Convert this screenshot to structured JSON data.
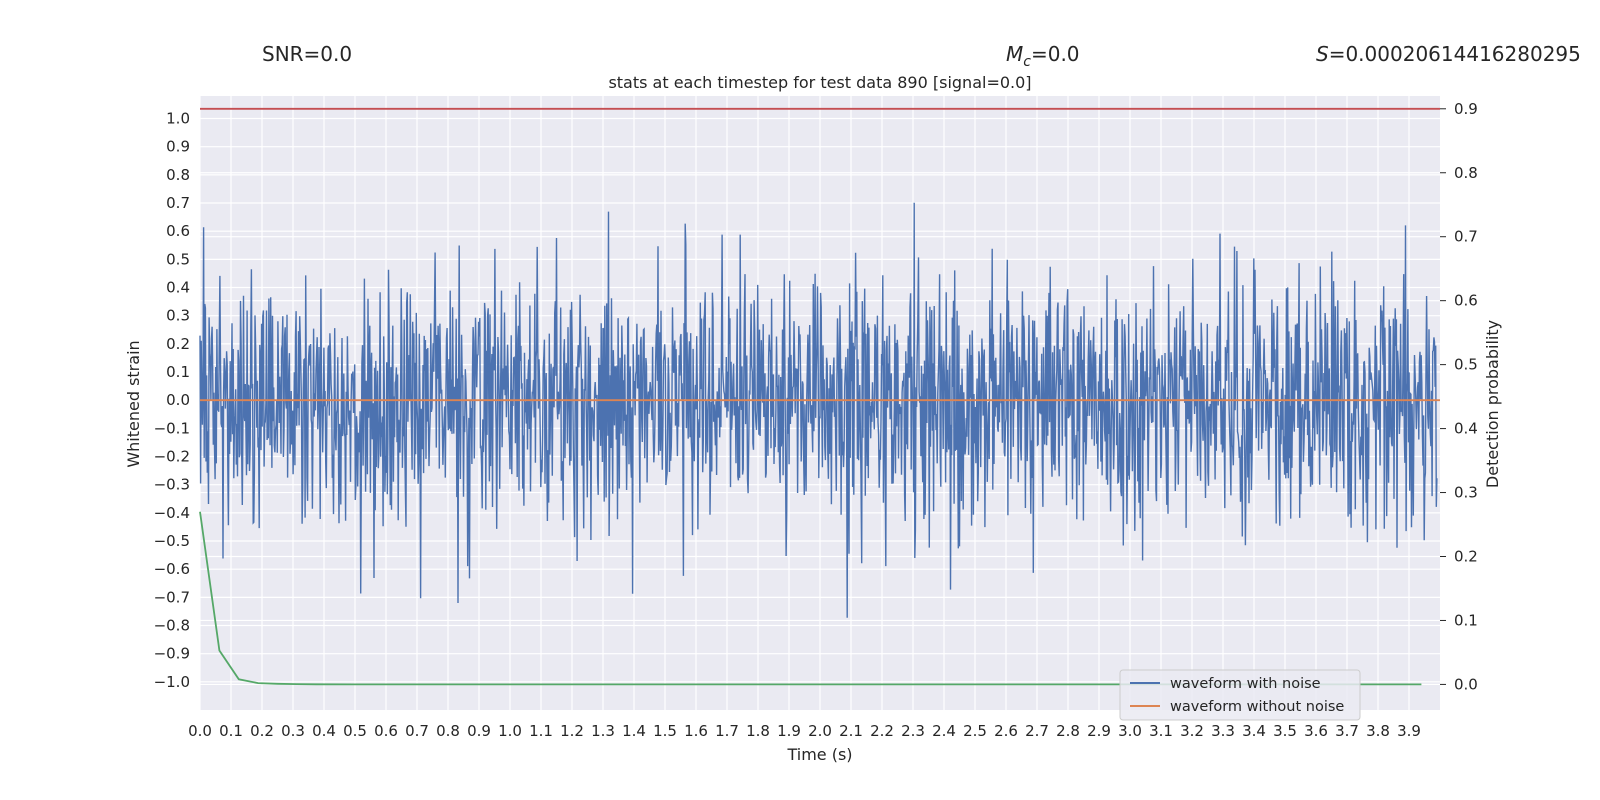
{
  "chart_data": {
    "type": "line",
    "title": "stats at each timestep for test data 890 [signal=0.0]",
    "stats": {
      "snr": "SNR=0.0",
      "mc_symbol": "M",
      "mc_sub": "c",
      "mc_value": "=0.0",
      "s_symbol": "S",
      "s_value": "=0.00020614416280295"
    },
    "xlabel": "Time (s)",
    "ylabel_left": "Whitened strain",
    "ylabel_right": "Detection probability",
    "xlim": [
      0.0,
      4.0
    ],
    "ylim_left": [
      -1.1,
      1.08
    ],
    "ylim_right": [
      -0.04,
      0.92
    ],
    "x_ticks": [
      "0.0",
      "0.1",
      "0.2",
      "0.3",
      "0.4",
      "0.5",
      "0.6",
      "0.7",
      "0.8",
      "0.9",
      "1.0",
      "1.1",
      "1.2",
      "1.3",
      "1.4",
      "1.5",
      "1.6",
      "1.7",
      "1.8",
      "1.9",
      "2.0",
      "2.1",
      "2.2",
      "2.3",
      "2.4",
      "2.5",
      "2.6",
      "2.7",
      "2.8",
      "2.9",
      "3.0",
      "3.1",
      "3.2",
      "3.3",
      "3.4",
      "3.5",
      "3.6",
      "3.7",
      "3.8",
      "3.9"
    ],
    "y_ticks_left": [
      "1.0",
      "0.9",
      "0.8",
      "0.7",
      "0.6",
      "0.5",
      "0.4",
      "0.3",
      "0.2",
      "0.1",
      "0.0",
      "−0.1",
      "−0.2",
      "−0.3",
      "−0.4",
      "−0.5",
      "−0.6",
      "−0.7",
      "−0.8",
      "−0.9",
      "−1.0"
    ],
    "y_ticks_right": [
      "0.9",
      "0.8",
      "0.7",
      "0.6",
      "0.5",
      "0.4",
      "0.3",
      "0.2",
      "0.1",
      "0.0"
    ],
    "threshold": 0.9,
    "series": [
      {
        "name": "waveform with noise",
        "color": "#4c72b0",
        "axis": "left",
        "kind": "noise",
        "n_samples": 2048,
        "approx_std": 0.22
      },
      {
        "name": "waveform without noise",
        "color": "#dd8452",
        "axis": "left",
        "x": [
          0.0,
          4.0
        ],
        "values": [
          0.0,
          0.0
        ]
      },
      {
        "name": "detection probability",
        "color": "#55a868",
        "axis": "right",
        "x": [
          0.0,
          0.0625,
          0.125,
          0.1875,
          0.25,
          0.3125,
          0.375,
          0.5,
          1.0,
          2.0,
          3.0,
          3.94
        ],
        "values": [
          0.27,
          0.053,
          0.008,
          0.002,
          0.001,
          0.0005,
          0.0002,
          0.0001,
          0.0,
          0.0,
          0.0,
          0.0
        ]
      },
      {
        "name": "threshold",
        "color": "#c44e52",
        "axis": "right",
        "x": [
          0.0,
          4.0
        ],
        "values": [
          0.9,
          0.9
        ]
      }
    ],
    "legend": {
      "position": "lower-right",
      "entries": [
        "waveform with noise",
        "waveform without noise"
      ]
    },
    "colors": {
      "background": "#eaeaf2",
      "grid": "#ffffff"
    }
  }
}
